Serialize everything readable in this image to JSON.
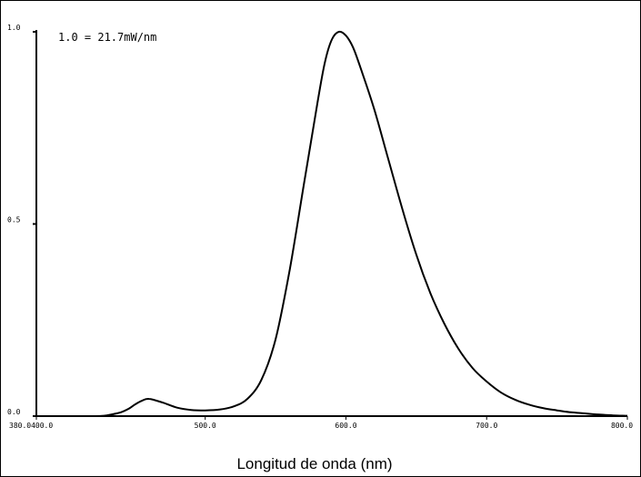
{
  "chart_data": {
    "type": "line",
    "title": "",
    "xlabel": "Longitud de onda (nm)",
    "ylabel": "",
    "annotation": "1.0 = 21.7mW/nm",
    "xlim": [
      380,
      800
    ],
    "ylim": [
      0,
      1.0
    ],
    "grid": false,
    "x_ticks": [
      {
        "value": 380,
        "label": "380.0400.0"
      },
      {
        "value": 500,
        "label": "500.0"
      },
      {
        "value": 600,
        "label": "600.0"
      },
      {
        "value": 700,
        "label": "700.0"
      },
      {
        "value": 800,
        "label": "800.0"
      }
    ],
    "y_ticks": [
      {
        "value": 0.0,
        "label": "0.0"
      },
      {
        "value": 0.5,
        "label": "0.5"
      },
      {
        "value": 1.0,
        "label": "1.0"
      }
    ],
    "colors": {
      "line": "#000000",
      "axis": "#000000"
    },
    "series": [
      {
        "x": [
          380,
          420,
          430,
          440,
          445,
          450,
          455,
          460,
          470,
          480,
          490,
          500,
          510,
          520,
          530,
          540,
          550,
          560,
          570,
          580,
          585,
          590,
          595,
          600,
          605,
          610,
          620,
          630,
          640,
          650,
          660,
          670,
          680,
          690,
          700,
          710,
          720,
          730,
          740,
          750,
          760,
          770,
          780,
          790,
          800
        ],
        "y": [
          0.0,
          0.0,
          0.002,
          0.01,
          0.018,
          0.03,
          0.04,
          0.045,
          0.035,
          0.022,
          0.016,
          0.015,
          0.017,
          0.025,
          0.045,
          0.095,
          0.2,
          0.38,
          0.6,
          0.82,
          0.92,
          0.98,
          1.0,
          0.99,
          0.96,
          0.91,
          0.8,
          0.67,
          0.54,
          0.42,
          0.32,
          0.24,
          0.175,
          0.125,
          0.09,
          0.062,
          0.043,
          0.03,
          0.021,
          0.015,
          0.01,
          0.007,
          0.004,
          0.002,
          0.001
        ]
      }
    ]
  }
}
